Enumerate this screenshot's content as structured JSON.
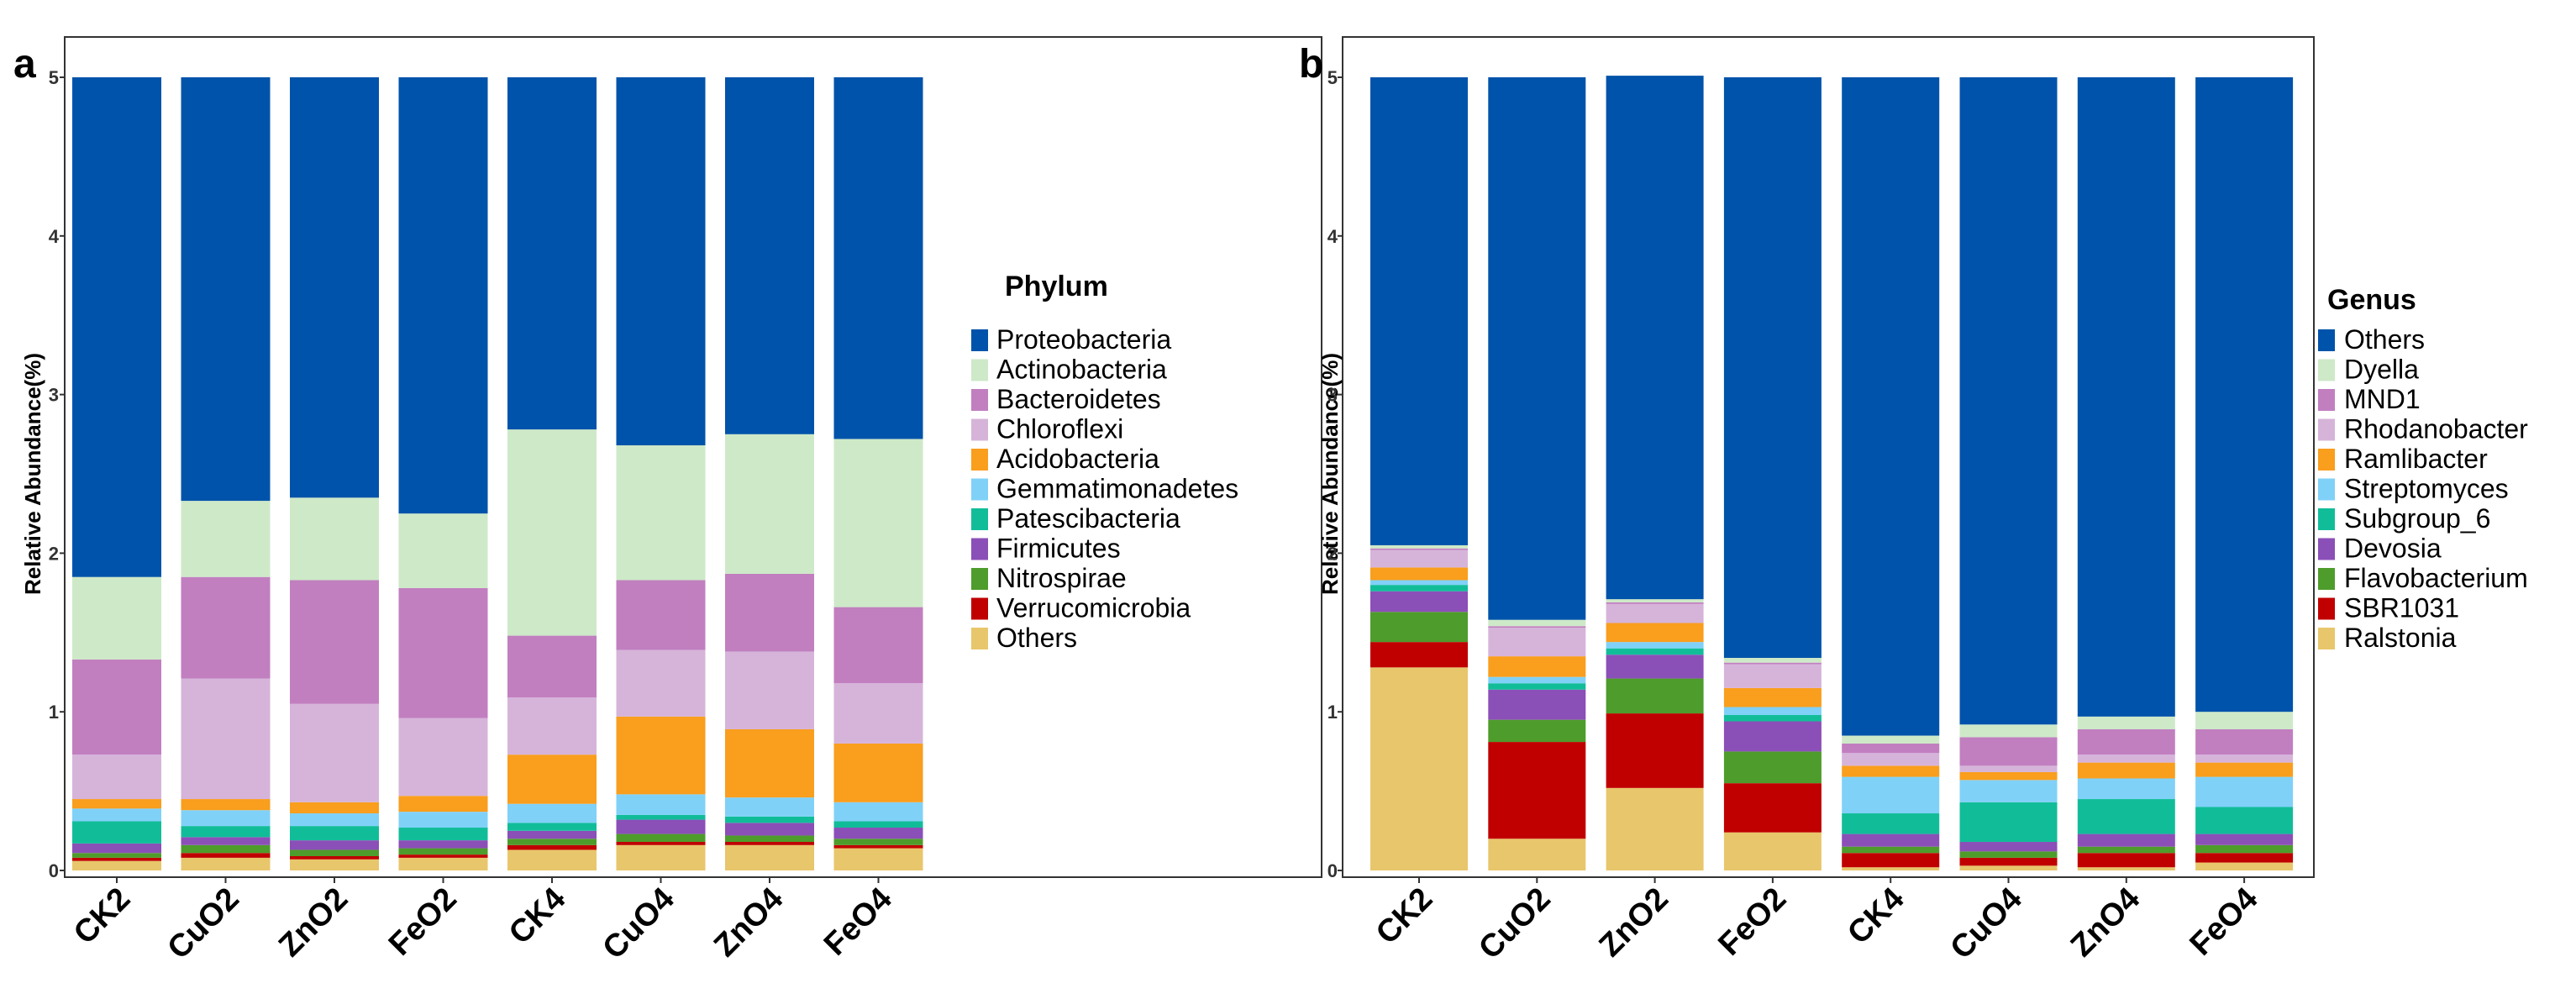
{
  "chart_data": [
    {
      "type": "bar",
      "stacked": true,
      "panel_label": "a",
      "ylabel": "Relative Abundance(%)",
      "ylim": [
        0,
        5
      ],
      "yticks": [
        "0",
        "1",
        "2",
        "3",
        "4",
        "5"
      ],
      "categories": [
        "CK2",
        "CuO2",
        "ZnO2",
        "FeO2",
        "CK4",
        "CuO4",
        "ZnO4",
        "FeO4"
      ],
      "legend_title": "Phylum",
      "legend_position": "right",
      "series": [
        {
          "name": "Others",
          "color": "#E8C66B",
          "values": [
            0.06,
            0.08,
            0.07,
            0.08,
            0.13,
            0.16,
            0.16,
            0.14
          ]
        },
        {
          "name": "Verrucomicrobia",
          "color": "#C00000",
          "values": [
            0.02,
            0.03,
            0.02,
            0.02,
            0.03,
            0.02,
            0.02,
            0.02
          ]
        },
        {
          "name": "Nitrospirae",
          "color": "#4E9C2B",
          "values": [
            0.03,
            0.05,
            0.04,
            0.04,
            0.04,
            0.05,
            0.04,
            0.04
          ]
        },
        {
          "name": "Firmicutes",
          "color": "#8B4FB8",
          "values": [
            0.06,
            0.05,
            0.06,
            0.05,
            0.05,
            0.09,
            0.08,
            0.07
          ]
        },
        {
          "name": "Patescibacteria",
          "color": "#11BD99",
          "values": [
            0.14,
            0.07,
            0.09,
            0.08,
            0.05,
            0.03,
            0.04,
            0.04
          ]
        },
        {
          "name": "Gemmatimonadetes",
          "color": "#80D1F8",
          "values": [
            0.08,
            0.1,
            0.08,
            0.1,
            0.12,
            0.13,
            0.12,
            0.12
          ]
        },
        {
          "name": "Acidobacteria",
          "color": "#F99E1D",
          "values": [
            0.06,
            0.07,
            0.07,
            0.1,
            0.31,
            0.49,
            0.43,
            0.37
          ]
        },
        {
          "name": "Chloroflexi",
          "color": "#D6B4DA",
          "values": [
            0.28,
            0.76,
            0.62,
            0.49,
            0.36,
            0.42,
            0.49,
            0.38
          ]
        },
        {
          "name": "Bacteroidetes",
          "color": "#C17FC0",
          "values": [
            0.6,
            0.64,
            0.78,
            0.82,
            0.39,
            0.44,
            0.49,
            0.48
          ]
        },
        {
          "name": "Actinobacteria",
          "color": "#CEE9C8",
          "values": [
            0.52,
            0.48,
            0.52,
            0.47,
            1.3,
            0.85,
            0.88,
            1.06
          ]
        },
        {
          "name": "Proteobacteria",
          "color": "#0053AA",
          "values": [
            3.15,
            2.67,
            2.65,
            2.75,
            2.22,
            2.32,
            2.25,
            2.28
          ]
        }
      ]
    },
    {
      "type": "bar",
      "stacked": true,
      "panel_label": "b",
      "ylabel": "Relative Abundance(%)",
      "ylim": [
        0,
        5
      ],
      "yticks": [
        "0",
        "1",
        "2",
        "3",
        "4",
        "5"
      ],
      "categories": [
        "CK2",
        "CuO2",
        "ZnO2",
        "FeO2",
        "CK4",
        "CuO4",
        "ZnO4",
        "FeO4"
      ],
      "legend_title": "Genus",
      "legend_position": "right",
      "series": [
        {
          "name": "Ralstonia",
          "color": "#E8C66B",
          "values": [
            1.28,
            0.2,
            0.52,
            0.24,
            0.02,
            0.03,
            0.02,
            0.05
          ]
        },
        {
          "name": "SBR1031",
          "color": "#C00000",
          "values": [
            0.16,
            0.61,
            0.47,
            0.31,
            0.09,
            0.05,
            0.09,
            0.06
          ]
        },
        {
          "name": "Flavobacterium",
          "color": "#4E9C2B",
          "values": [
            0.19,
            0.14,
            0.22,
            0.2,
            0.04,
            0.04,
            0.04,
            0.05
          ]
        },
        {
          "name": "Devosia",
          "color": "#8B4FB8",
          "values": [
            0.13,
            0.19,
            0.15,
            0.19,
            0.08,
            0.06,
            0.08,
            0.07
          ]
        },
        {
          "name": "Subgroup_6",
          "color": "#11BD99",
          "values": [
            0.04,
            0.04,
            0.04,
            0.04,
            0.13,
            0.25,
            0.22,
            0.17
          ]
        },
        {
          "name": "Streptomyces",
          "color": "#80D1F8",
          "values": [
            0.03,
            0.04,
            0.04,
            0.05,
            0.23,
            0.14,
            0.13,
            0.19
          ]
        },
        {
          "name": "Ramlibacter",
          "color": "#F99E1D",
          "values": [
            0.08,
            0.13,
            0.12,
            0.12,
            0.07,
            0.05,
            0.1,
            0.09
          ]
        },
        {
          "name": "Rhodanobacter",
          "color": "#D6B4DA",
          "values": [
            0.11,
            0.18,
            0.12,
            0.15,
            0.08,
            0.04,
            0.05,
            0.05
          ]
        },
        {
          "name": "MND1",
          "color": "#C17FC0",
          "values": [
            0.01,
            0.01,
            0.01,
            0.01,
            0.06,
            0.18,
            0.16,
            0.16
          ]
        },
        {
          "name": "Dyella",
          "color": "#CEE9C8",
          "values": [
            0.02,
            0.04,
            0.02,
            0.03,
            0.05,
            0.08,
            0.08,
            0.11
          ]
        },
        {
          "name": "Others",
          "color": "#0053AA",
          "values": [
            2.95,
            3.42,
            3.3,
            3.66,
            4.15,
            4.08,
            4.03,
            4.0
          ]
        }
      ]
    }
  ]
}
